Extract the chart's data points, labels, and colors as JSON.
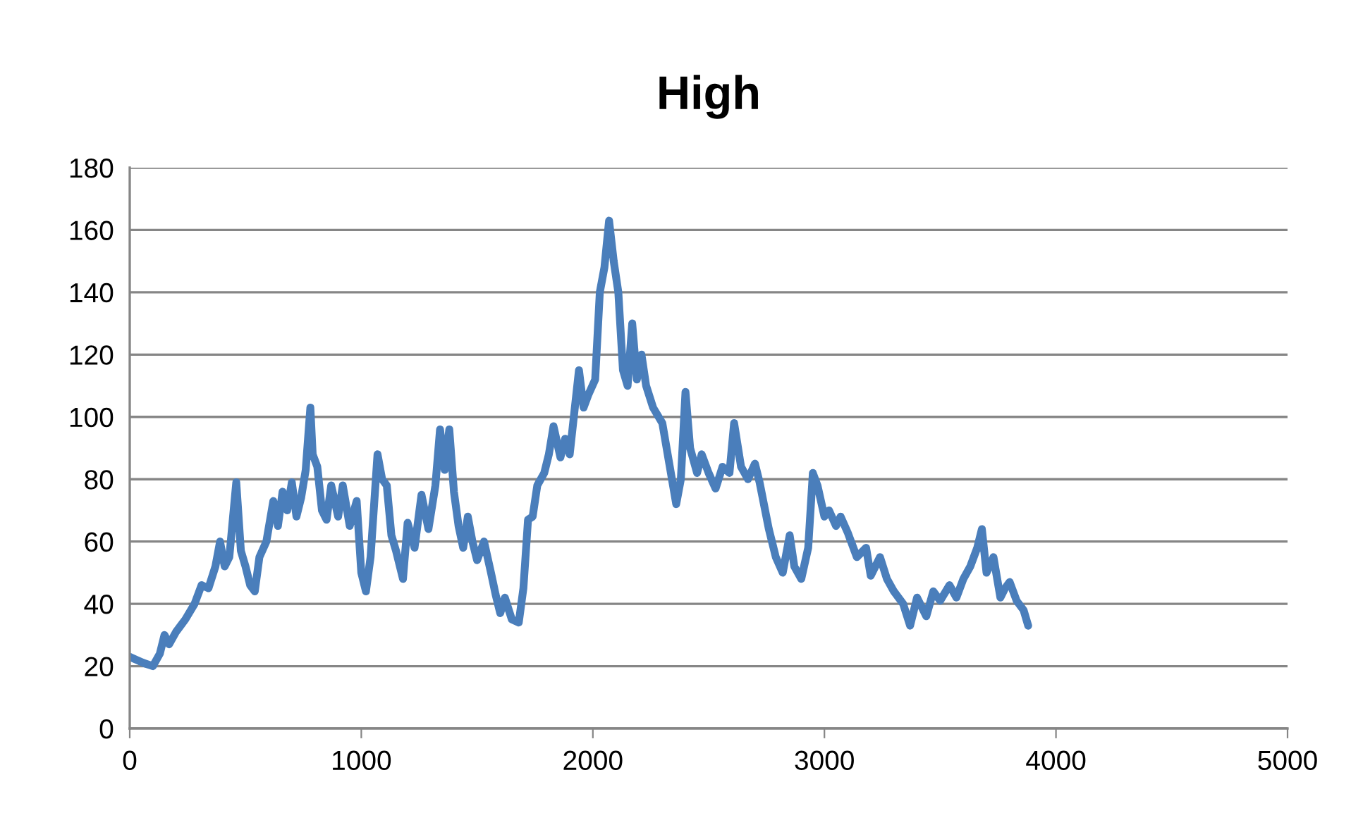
{
  "chart_data": {
    "type": "line",
    "title": "High",
    "x": [
      0,
      30,
      60,
      100,
      130,
      150,
      170,
      200,
      240,
      280,
      310,
      340,
      370,
      390,
      410,
      430,
      460,
      480,
      500,
      520,
      540,
      560,
      590,
      620,
      640,
      660,
      680,
      700,
      720,
      740,
      760,
      780,
      790,
      810,
      830,
      850,
      870,
      900,
      920,
      950,
      980,
      1000,
      1020,
      1040,
      1070,
      1090,
      1110,
      1130,
      1150,
      1180,
      1200,
      1230,
      1260,
      1290,
      1320,
      1340,
      1360,
      1380,
      1400,
      1420,
      1440,
      1460,
      1480,
      1500,
      1530,
      1560,
      1580,
      1600,
      1620,
      1650,
      1680,
      1700,
      1720,
      1740,
      1760,
      1790,
      1810,
      1830,
      1860,
      1880,
      1900,
      1940,
      1960,
      1980,
      2010,
      2030,
      2050,
      2070,
      2090,
      2110,
      2130,
      2150,
      2170,
      2190,
      2210,
      2230,
      2260,
      2300,
      2330,
      2360,
      2380,
      2400,
      2420,
      2450,
      2470,
      2500,
      2530,
      2560,
      2590,
      2610,
      2640,
      2670,
      2700,
      2720,
      2760,
      2790,
      2820,
      2850,
      2870,
      2900,
      2930,
      2950,
      2970,
      3000,
      3020,
      3050,
      3070,
      3100,
      3140,
      3180,
      3200,
      3240,
      3270,
      3300,
      3340,
      3370,
      3400,
      3440,
      3470,
      3500,
      3540,
      3570,
      3600,
      3630,
      3660,
      3680,
      3700,
      3730,
      3760,
      3780,
      3800,
      3830,
      3860,
      3880
    ],
    "series": [
      {
        "color": "#4a7ebb",
        "values": [
          23,
          22,
          21,
          20,
          24,
          30,
          27,
          31,
          35,
          40,
          46,
          45,
          52,
          60,
          52,
          55,
          79,
          57,
          52,
          46,
          44,
          55,
          60,
          73,
          65,
          76,
          70,
          79,
          68,
          74,
          83,
          103,
          88,
          84,
          70,
          67,
          78,
          68,
          78,
          65,
          73,
          50,
          44,
          55,
          88,
          80,
          78,
          62,
          57,
          48,
          66,
          58,
          75,
          64,
          78,
          96,
          83,
          96,
          76,
          65,
          58,
          68,
          60,
          54,
          60,
          50,
          43,
          37,
          42,
          35,
          34,
          45,
          67,
          68,
          78,
          82,
          88,
          97,
          87,
          93,
          88,
          115,
          103,
          107,
          112,
          140,
          148,
          163,
          150,
          140,
          115,
          110,
          130,
          112,
          120,
          110,
          103,
          98,
          85,
          72,
          80,
          108,
          90,
          82,
          88,
          82,
          77,
          84,
          82,
          98,
          84,
          80,
          85,
          79,
          64,
          55,
          50,
          62,
          52,
          48,
          58,
          82,
          78,
          68,
          70,
          65,
          68,
          63,
          55,
          58,
          49,
          55,
          48,
          44,
          40,
          33,
          42,
          36,
          44,
          41,
          46,
          42,
          48,
          52,
          58,
          64,
          50,
          55,
          42,
          45,
          47,
          41,
          38,
          33
        ]
      }
    ],
    "xlim": [
      0,
      5000
    ],
    "xticks": [
      0,
      1000,
      2000,
      3000,
      4000,
      5000
    ],
    "ylim": [
      0,
      180
    ],
    "yticks": [
      0,
      20,
      40,
      60,
      80,
      100,
      120,
      140,
      160,
      180
    ],
    "grid": "y",
    "legend": false,
    "marker": "none",
    "line_style": "solid"
  }
}
